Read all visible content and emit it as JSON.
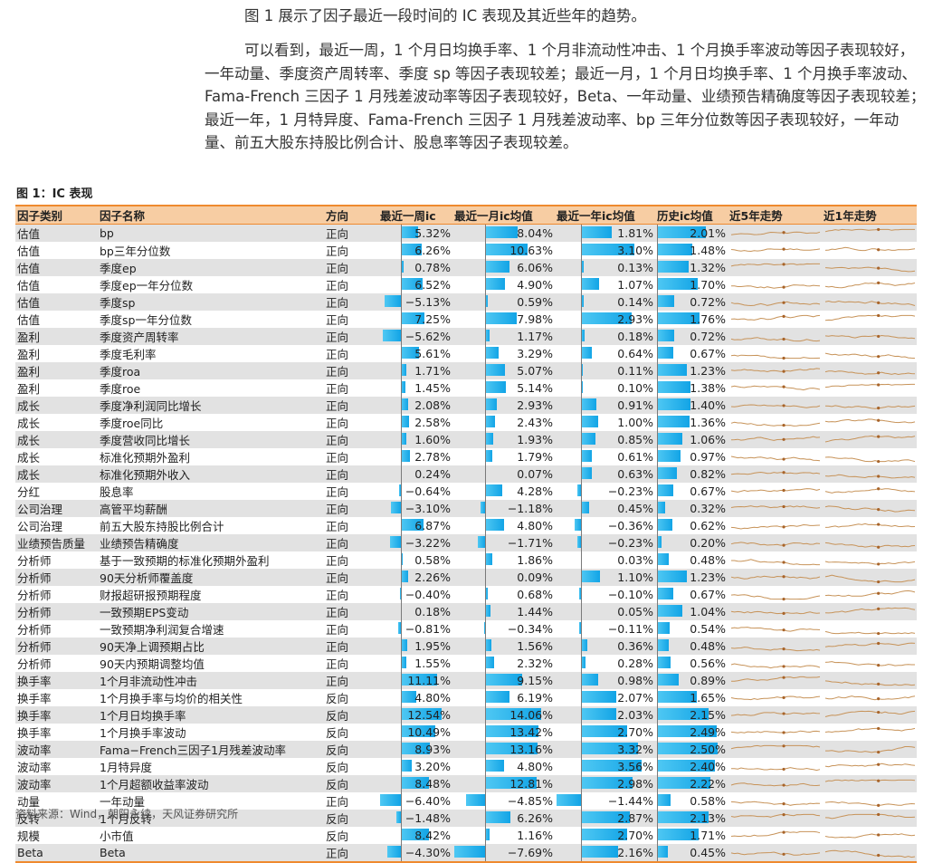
{
  "intro_line": "图 1 展示了因子最近一段时间的 IC 表现及其近些年的趋势。",
  "summary_paragraph": "可以看到，最近一周，1 个月日均换手率、1 个月非流动性冲击、1 个月换手率波动等因子表现较好，一年动量、季度资产周转率、季度 sp 等因子表现较差；最近一月，1 个月日均换手率、1 个月换手率波动、Fama-French 三因子 1 月残差波动率等因子表现较好，Beta、一年动量、业绩预告精确度等因子表现较差；最近一年，1 月特异度、Fama-French 三因子 1 月残差波动率、bp 三年分位数等因子表现较好，一年动量、前五大股东持股比例合计、股息率等因子表现较差。",
  "figure_title": "图 1：IC 表现",
  "columns": [
    "因子类别",
    "因子名称",
    "方向",
    "最近一周ic",
    "最近一月ic均值",
    "最近一年ic均值",
    "历史ic均值",
    "近5年走势",
    "近1年走势"
  ],
  "rows": [
    {
      "category": "估值",
      "name": "bp",
      "direction": "正向",
      "week": "5.32%",
      "month": "8.04%",
      "year": "1.81%",
      "hist": "2.01%",
      "w": 5.32,
      "m": 8.04,
      "y": 1.81,
      "h": 2.01
    },
    {
      "category": "估值",
      "name": "bp三年分位数",
      "direction": "正向",
      "week": "6.26%",
      "month": "10.63%",
      "year": "3.10%",
      "hist": "1.48%",
      "w": 6.26,
      "m": 10.63,
      "y": 3.1,
      "h": 1.48
    },
    {
      "category": "估值",
      "name": "季度ep",
      "direction": "正向",
      "week": "0.78%",
      "month": "6.06%",
      "year": "0.13%",
      "hist": "1.32%",
      "w": 0.78,
      "m": 6.06,
      "y": 0.13,
      "h": 1.32
    },
    {
      "category": "估值",
      "name": "季度ep一年分位数",
      "direction": "正向",
      "week": "6.52%",
      "month": "4.90%",
      "year": "1.07%",
      "hist": "1.70%",
      "w": 6.52,
      "m": 4.9,
      "y": 1.07,
      "h": 1.7
    },
    {
      "category": "估值",
      "name": "季度sp",
      "direction": "正向",
      "week": "−5.13%",
      "month": "0.59%",
      "year": "0.14%",
      "hist": "0.72%",
      "w": -5.13,
      "m": 0.59,
      "y": 0.14,
      "h": 0.72
    },
    {
      "category": "估值",
      "name": "季度sp一年分位数",
      "direction": "正向",
      "week": "7.25%",
      "month": "7.98%",
      "year": "2.93%",
      "hist": "1.76%",
      "w": 7.25,
      "m": 7.98,
      "y": 2.93,
      "h": 1.76
    },
    {
      "category": "盈利",
      "name": "季度资产周转率",
      "direction": "正向",
      "week": "−5.62%",
      "month": "1.17%",
      "year": "0.18%",
      "hist": "0.72%",
      "w": -5.62,
      "m": 1.17,
      "y": 0.18,
      "h": 0.72
    },
    {
      "category": "盈利",
      "name": "季度毛利率",
      "direction": "正向",
      "week": "5.61%",
      "month": "3.29%",
      "year": "0.64%",
      "hist": "0.67%",
      "w": 5.61,
      "m": 3.29,
      "y": 0.64,
      "h": 0.67
    },
    {
      "category": "盈利",
      "name": "季度roa",
      "direction": "正向",
      "week": "1.71%",
      "month": "5.07%",
      "year": "0.11%",
      "hist": "1.23%",
      "w": 1.71,
      "m": 5.07,
      "y": 0.11,
      "h": 1.23
    },
    {
      "category": "盈利",
      "name": "季度roe",
      "direction": "正向",
      "week": "1.45%",
      "month": "5.14%",
      "year": "0.10%",
      "hist": "1.38%",
      "w": 1.45,
      "m": 5.14,
      "y": 0.1,
      "h": 1.38
    },
    {
      "category": "成长",
      "name": "季度净利润同比增长",
      "direction": "正向",
      "week": "2.08%",
      "month": "2.93%",
      "year": "0.91%",
      "hist": "1.40%",
      "w": 2.08,
      "m": 2.93,
      "y": 0.91,
      "h": 1.4
    },
    {
      "category": "成长",
      "name": "季度roe同比",
      "direction": "正向",
      "week": "2.58%",
      "month": "2.43%",
      "year": "1.00%",
      "hist": "1.36%",
      "w": 2.58,
      "m": 2.43,
      "y": 1.0,
      "h": 1.36
    },
    {
      "category": "成长",
      "name": "季度营收同比增长",
      "direction": "正向",
      "week": "1.60%",
      "month": "1.93%",
      "year": "0.85%",
      "hist": "1.06%",
      "w": 1.6,
      "m": 1.93,
      "y": 0.85,
      "h": 1.06
    },
    {
      "category": "成长",
      "name": "标准化预期外盈利",
      "direction": "正向",
      "week": "2.78%",
      "month": "1.79%",
      "year": "0.61%",
      "hist": "0.97%",
      "w": 2.78,
      "m": 1.79,
      "y": 0.61,
      "h": 0.97
    },
    {
      "category": "成长",
      "name": "标准化预期外收入",
      "direction": "正向",
      "week": "0.24%",
      "month": "0.07%",
      "year": "0.63%",
      "hist": "0.82%",
      "w": 0.24,
      "m": 0.07,
      "y": 0.63,
      "h": 0.82
    },
    {
      "category": "分红",
      "name": "股息率",
      "direction": "正向",
      "week": "−0.64%",
      "month": "4.28%",
      "year": "−0.23%",
      "hist": "0.67%",
      "w": -0.64,
      "m": 4.28,
      "y": -0.23,
      "h": 0.67
    },
    {
      "category": "公司治理",
      "name": "高管平均薪酬",
      "direction": "正向",
      "week": "−3.10%",
      "month": "−1.18%",
      "year": "0.45%",
      "hist": "0.32%",
      "w": -3.1,
      "m": -1.18,
      "y": 0.45,
      "h": 0.32
    },
    {
      "category": "公司治理",
      "name": "前五大股东持股比例合计",
      "direction": "正向",
      "week": "6.87%",
      "month": "4.80%",
      "year": "−0.36%",
      "hist": "0.62%",
      "w": 6.87,
      "m": 4.8,
      "y": -0.36,
      "h": 0.62
    },
    {
      "category": "业绩预告质量",
      "name": "业绩预告精确度",
      "direction": "正向",
      "week": "−3.22%",
      "month": "−1.71%",
      "year": "−0.23%",
      "hist": "0.20%",
      "w": -3.22,
      "m": -1.71,
      "y": -0.23,
      "h": 0.2
    },
    {
      "category": "分析师",
      "name": "基于一致预期的标准化预期外盈利",
      "direction": "正向",
      "week": "0.58%",
      "month": "1.86%",
      "year": "0.03%",
      "hist": "0.48%",
      "w": 0.58,
      "m": 1.86,
      "y": 0.03,
      "h": 0.48
    },
    {
      "category": "分析师",
      "name": "90天分析师覆盖度",
      "direction": "正向",
      "week": "2.26%",
      "month": "0.09%",
      "year": "1.10%",
      "hist": "1.23%",
      "w": 2.26,
      "m": 0.09,
      "y": 1.1,
      "h": 1.23
    },
    {
      "category": "分析师",
      "name": "财报超研报预期程度",
      "direction": "正向",
      "week": "−0.40%",
      "month": "0.68%",
      "year": "−0.10%",
      "hist": "0.67%",
      "w": -0.4,
      "m": 0.68,
      "y": -0.1,
      "h": 0.67
    },
    {
      "category": "分析师",
      "name": "一致预期EPS变动",
      "direction": "正向",
      "week": "0.18%",
      "month": "1.44%",
      "year": "0.05%",
      "hist": "1.04%",
      "w": 0.18,
      "m": 1.44,
      "y": 0.05,
      "h": 1.04
    },
    {
      "category": "分析师",
      "name": "一致预期净利润复合增速",
      "direction": "正向",
      "week": "−0.81%",
      "month": "−0.34%",
      "year": "−0.11%",
      "hist": "0.54%",
      "w": -0.81,
      "m": -0.34,
      "y": -0.11,
      "h": 0.54
    },
    {
      "category": "分析师",
      "name": "90天净上调预期占比",
      "direction": "正向",
      "week": "1.95%",
      "month": "1.56%",
      "year": "0.36%",
      "hist": "0.48%",
      "w": 1.95,
      "m": 1.56,
      "y": 0.36,
      "h": 0.48
    },
    {
      "category": "分析师",
      "name": "90天内预期调整均值",
      "direction": "正向",
      "week": "1.55%",
      "month": "2.32%",
      "year": "0.28%",
      "hist": "0.56%",
      "w": 1.55,
      "m": 2.32,
      "y": 0.28,
      "h": 0.56
    },
    {
      "category": "换手率",
      "name": "1个月非流动性冲击",
      "direction": "正向",
      "week": "11.11%",
      "month": "9.15%",
      "year": "0.98%",
      "hist": "0.89%",
      "w": 11.11,
      "m": 9.15,
      "y": 0.98,
      "h": 0.89
    },
    {
      "category": "换手率",
      "name": "1个月换手率与均价的相关性",
      "direction": "反向",
      "week": "4.80%",
      "month": "6.19%",
      "year": "2.07%",
      "hist": "1.65%",
      "w": 4.8,
      "m": 6.19,
      "y": 2.07,
      "h": 1.65
    },
    {
      "category": "换手率",
      "name": "1个月日均换手率",
      "direction": "反向",
      "week": "12.54%",
      "month": "14.06%",
      "year": "2.03%",
      "hist": "2.15%",
      "w": 12.54,
      "m": 14.06,
      "y": 2.03,
      "h": 2.15
    },
    {
      "category": "换手率",
      "name": "1个月换手率波动",
      "direction": "反向",
      "week": "10.49%",
      "month": "13.42%",
      "year": "2.70%",
      "hist": "2.49%",
      "w": 10.49,
      "m": 13.42,
      "y": 2.7,
      "h": 2.49
    },
    {
      "category": "波动率",
      "name": "Fama−French三因子1月残差波动率",
      "direction": "反向",
      "week": "8.93%",
      "month": "13.16%",
      "year": "3.32%",
      "hist": "2.50%",
      "w": 8.93,
      "m": 13.16,
      "y": 3.32,
      "h": 2.5
    },
    {
      "category": "波动率",
      "name": "1月特异度",
      "direction": "反向",
      "week": "3.20%",
      "month": "4.80%",
      "year": "3.56%",
      "hist": "2.40%",
      "w": 3.2,
      "m": 4.8,
      "y": 3.56,
      "h": 2.4
    },
    {
      "category": "波动率",
      "name": "1个月超额收益率波动",
      "direction": "反向",
      "week": "8.48%",
      "month": "12.81%",
      "year": "2.98%",
      "hist": "2.22%",
      "w": 8.48,
      "m": 12.81,
      "y": 2.98,
      "h": 2.22
    },
    {
      "category": "动量",
      "name": "一年动量",
      "direction": "正向",
      "week": "−6.40%",
      "month": "−4.85%",
      "year": "−1.44%",
      "hist": "0.58%",
      "w": -6.4,
      "m": -4.85,
      "y": -1.44,
      "h": 0.58
    },
    {
      "category": "反转",
      "name": "1个月反转",
      "direction": "反向",
      "week": "−1.48%",
      "month": "6.26%",
      "year": "2.87%",
      "hist": "2.13%",
      "w": -1.48,
      "m": 6.26,
      "y": 2.87,
      "h": 2.13
    },
    {
      "category": "规模",
      "name": "小市值",
      "direction": "反向",
      "week": "8.42%",
      "month": "1.16%",
      "year": "2.70%",
      "hist": "1.71%",
      "w": 8.42,
      "m": 1.16,
      "y": 2.7,
      "h": 1.71
    },
    {
      "category": "Beta",
      "name": "Beta",
      "direction": "正向",
      "week": "−4.30%",
      "month": "−7.69%",
      "year": "2.16%",
      "hist": "0.45%",
      "w": -4.3,
      "m": -7.69,
      "y": 2.16,
      "h": 0.45
    }
  ],
  "colors": {
    "header_bg": "#f7cda3",
    "rule": "#ef8a2f",
    "bar": "#1aa9e8",
    "sparkline": "#c79359",
    "band_row": "#e2e2e2"
  },
  "source": "资料来源：Wind，朝阳永续，天风证券研究所"
}
